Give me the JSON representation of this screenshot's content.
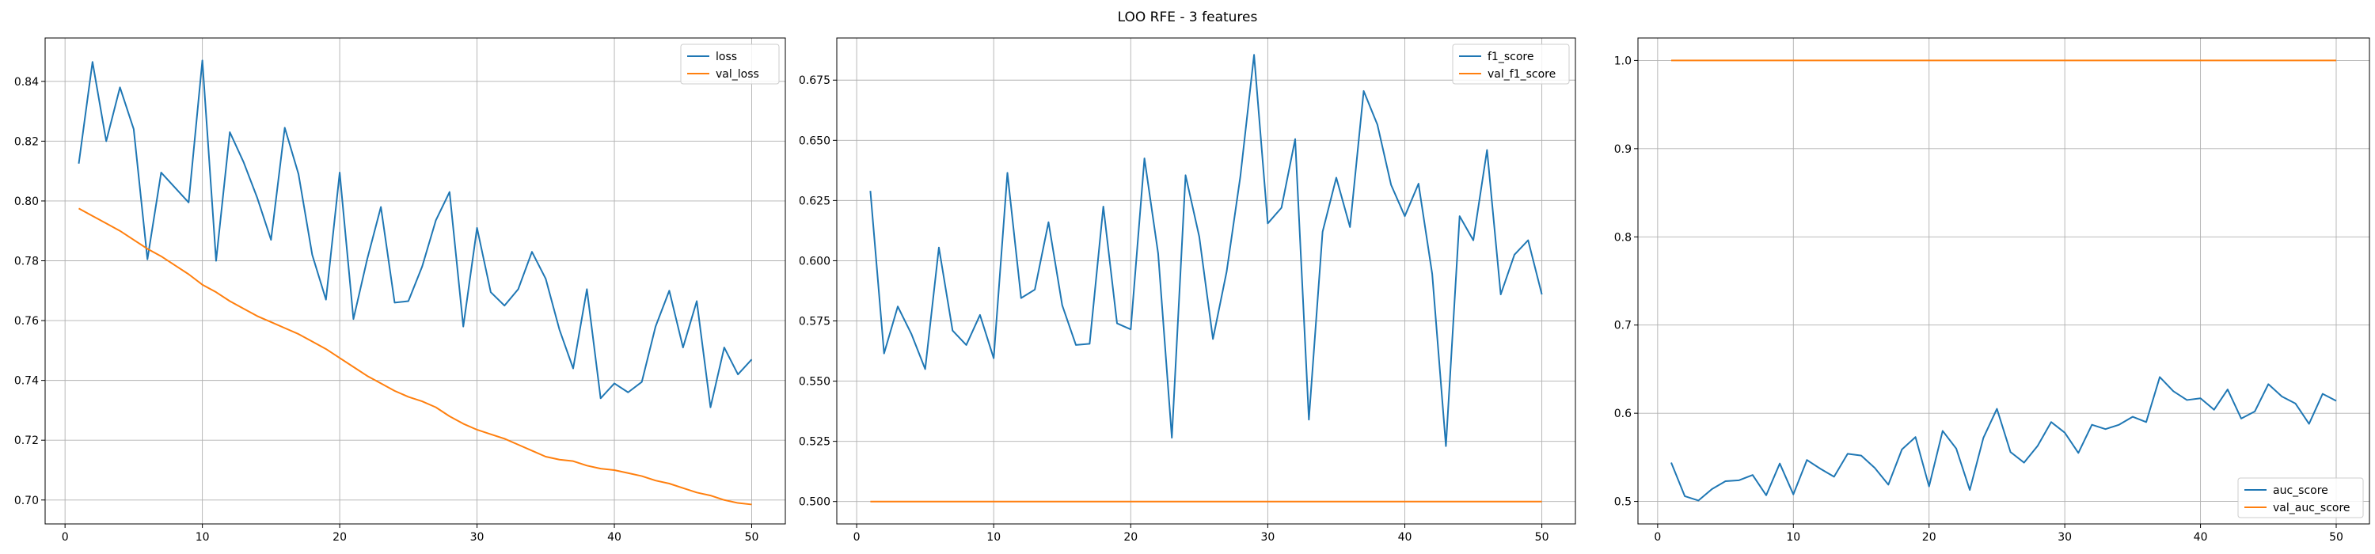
{
  "figure": {
    "title": "LOO RFE - 3 features"
  },
  "chart_data": [
    {
      "type": "line",
      "title": "",
      "xlabel": "",
      "ylabel": "",
      "xlim": [
        -1.45,
        52.45
      ],
      "ylim": [
        0.692,
        0.8545
      ],
      "xticks": [
        0,
        10,
        20,
        30,
        40,
        50
      ],
      "yticks": [
        0.7,
        0.72,
        0.74,
        0.76,
        0.78,
        0.8,
        0.82,
        0.84
      ],
      "ytick_labels": [
        "0.70",
        "0.72",
        "0.74",
        "0.76",
        "0.78",
        "0.80",
        "0.82",
        "0.84"
      ],
      "grid": true,
      "legend_position": "top-right",
      "x": [
        1,
        2,
        3,
        4,
        5,
        6,
        7,
        8,
        9,
        10,
        11,
        12,
        13,
        14,
        15,
        16,
        17,
        18,
        19,
        20,
        21,
        22,
        23,
        24,
        25,
        26,
        27,
        28,
        29,
        30,
        31,
        32,
        33,
        34,
        35,
        36,
        37,
        38,
        39,
        40,
        41,
        42,
        43,
        44,
        45,
        46,
        47,
        48,
        49,
        50
      ],
      "series": [
        {
          "name": "loss",
          "color": "#1f77b4",
          "values": [
            0.8125,
            0.8465,
            0.82,
            0.838,
            0.824,
            0.7805,
            0.8095,
            0.8045,
            0.7995,
            0.847,
            0.78,
            0.823,
            0.813,
            0.801,
            0.787,
            0.8245,
            0.809,
            0.782,
            0.767,
            0.8095,
            0.7605,
            0.7805,
            0.798,
            0.766,
            0.7665,
            0.778,
            0.7935,
            0.803,
            0.758,
            0.791,
            0.7695,
            0.765,
            0.7705,
            0.783,
            0.774,
            0.757,
            0.744,
            0.7705,
            0.734,
            0.739,
            0.736,
            0.7395,
            0.758,
            0.77,
            0.751,
            0.7665,
            0.731,
            0.751,
            0.742,
            0.747
          ]
        },
        {
          "name": "val_loss",
          "color": "#ff7f0e",
          "values": [
            0.7975,
            0.795,
            0.7925,
            0.79,
            0.787,
            0.784,
            0.7815,
            0.7785,
            0.7755,
            0.772,
            0.7695,
            0.7665,
            0.764,
            0.7615,
            0.7595,
            0.7575,
            0.7555,
            0.753,
            0.7505,
            0.7475,
            0.7445,
            0.7415,
            0.739,
            0.7365,
            0.7345,
            0.733,
            0.731,
            0.728,
            0.7255,
            0.7235,
            0.722,
            0.7205,
            0.7185,
            0.7165,
            0.7145,
            0.7135,
            0.713,
            0.7115,
            0.7105,
            0.71,
            0.709,
            0.708,
            0.7065,
            0.7055,
            0.704,
            0.7025,
            0.7015,
            0.7,
            0.699,
            0.6985
          ]
        }
      ]
    },
    {
      "type": "line",
      "title": "",
      "xlabel": "",
      "ylabel": "",
      "xlim": [
        -1.45,
        52.45
      ],
      "ylim": [
        0.4907,
        0.6925
      ],
      "xticks": [
        0,
        10,
        20,
        30,
        40,
        50
      ],
      "yticks": [
        0.5,
        0.525,
        0.55,
        0.575,
        0.6,
        0.625,
        0.65,
        0.675
      ],
      "ytick_labels": [
        "0.500",
        "0.525",
        "0.550",
        "0.575",
        "0.600",
        "0.625",
        "0.650",
        "0.675"
      ],
      "grid": true,
      "legend_position": "top-right",
      "x": [
        1,
        2,
        3,
        4,
        5,
        6,
        7,
        8,
        9,
        10,
        11,
        12,
        13,
        14,
        15,
        16,
        17,
        18,
        19,
        20,
        21,
        22,
        23,
        24,
        25,
        26,
        27,
        28,
        29,
        30,
        31,
        32,
        33,
        34,
        35,
        36,
        37,
        38,
        39,
        40,
        41,
        42,
        43,
        44,
        45,
        46,
        47,
        48,
        49,
        50
      ],
      "series": [
        {
          "name": "f1_score",
          "color": "#1f77b4",
          "values": [
            0.629,
            0.5615,
            0.581,
            0.5695,
            0.555,
            0.6055,
            0.571,
            0.565,
            0.5775,
            0.5595,
            0.6365,
            0.5845,
            0.588,
            0.616,
            0.5815,
            0.565,
            0.5655,
            0.6225,
            0.574,
            0.5715,
            0.6425,
            0.603,
            0.5265,
            0.6355,
            0.61,
            0.5675,
            0.5955,
            0.635,
            0.6855,
            0.6155,
            0.622,
            0.6505,
            0.534,
            0.612,
            0.6345,
            0.614,
            0.6705,
            0.6565,
            0.6315,
            0.6185,
            0.632,
            0.5945,
            0.523,
            0.6185,
            0.6085,
            0.646,
            0.586,
            0.6025,
            0.6085,
            0.586
          ]
        },
        {
          "name": "val_f1_score",
          "color": "#ff7f0e",
          "values": [
            0.5,
            0.5,
            0.5,
            0.5,
            0.5,
            0.5,
            0.5,
            0.5,
            0.5,
            0.5,
            0.5,
            0.5,
            0.5,
            0.5,
            0.5,
            0.5,
            0.5,
            0.5,
            0.5,
            0.5,
            0.5,
            0.5,
            0.5,
            0.5,
            0.5,
            0.5,
            0.5,
            0.5,
            0.5,
            0.5,
            0.5,
            0.5,
            0.5,
            0.5,
            0.5,
            0.5,
            0.5,
            0.5,
            0.5,
            0.5,
            0.5,
            0.5,
            0.5,
            0.5,
            0.5,
            0.5,
            0.5,
            0.5,
            0.5,
            0.5
          ]
        }
      ]
    },
    {
      "type": "line",
      "title": "",
      "xlabel": "",
      "ylabel": "",
      "xlim": [
        -1.45,
        52.45
      ],
      "ylim": [
        0.4745,
        1.0255
      ],
      "xticks": [
        0,
        10,
        20,
        30,
        40,
        50
      ],
      "yticks": [
        0.5,
        0.6,
        0.7,
        0.8,
        0.9,
        1.0
      ],
      "ytick_labels": [
        "0.5",
        "0.6",
        "0.7",
        "0.8",
        "0.9",
        "1.0"
      ],
      "grid": true,
      "legend_position": "bottom-right",
      "x": [
        1,
        2,
        3,
        4,
        5,
        6,
        7,
        8,
        9,
        10,
        11,
        12,
        13,
        14,
        15,
        16,
        17,
        18,
        19,
        20,
        21,
        22,
        23,
        24,
        25,
        26,
        27,
        28,
        29,
        30,
        31,
        32,
        33,
        34,
        35,
        36,
        37,
        38,
        39,
        40,
        41,
        42,
        43,
        44,
        45,
        46,
        47,
        48,
        49,
        50
      ],
      "series": [
        {
          "name": "auc_score",
          "color": "#1f77b4",
          "values": [
            0.544,
            0.506,
            0.501,
            0.514,
            0.523,
            0.524,
            0.53,
            0.507,
            0.543,
            0.508,
            0.547,
            0.537,
            0.528,
            0.554,
            0.552,
            0.538,
            0.519,
            0.559,
            0.573,
            0.517,
            0.58,
            0.56,
            0.513,
            0.572,
            0.605,
            0.556,
            0.544,
            0.563,
            0.59,
            0.578,
            0.555,
            0.587,
            0.582,
            0.587,
            0.596,
            0.59,
            0.641,
            0.625,
            0.615,
            0.617,
            0.604,
            0.627,
            0.594,
            0.602,
            0.633,
            0.619,
            0.611,
            0.588,
            0.622,
            0.614
          ]
        },
        {
          "name": "val_auc_score",
          "color": "#ff7f0e",
          "values": [
            1.0,
            1.0,
            1.0,
            1.0,
            1.0,
            1.0,
            1.0,
            1.0,
            1.0,
            1.0,
            1.0,
            1.0,
            1.0,
            1.0,
            1.0,
            1.0,
            1.0,
            1.0,
            1.0,
            1.0,
            1.0,
            1.0,
            1.0,
            1.0,
            1.0,
            1.0,
            1.0,
            1.0,
            1.0,
            1.0,
            1.0,
            1.0,
            1.0,
            1.0,
            1.0,
            1.0,
            1.0,
            1.0,
            1.0,
            1.0,
            1.0,
            1.0,
            1.0,
            1.0,
            1.0,
            1.0,
            1.0,
            1.0,
            1.0,
            1.0
          ]
        }
      ]
    }
  ]
}
